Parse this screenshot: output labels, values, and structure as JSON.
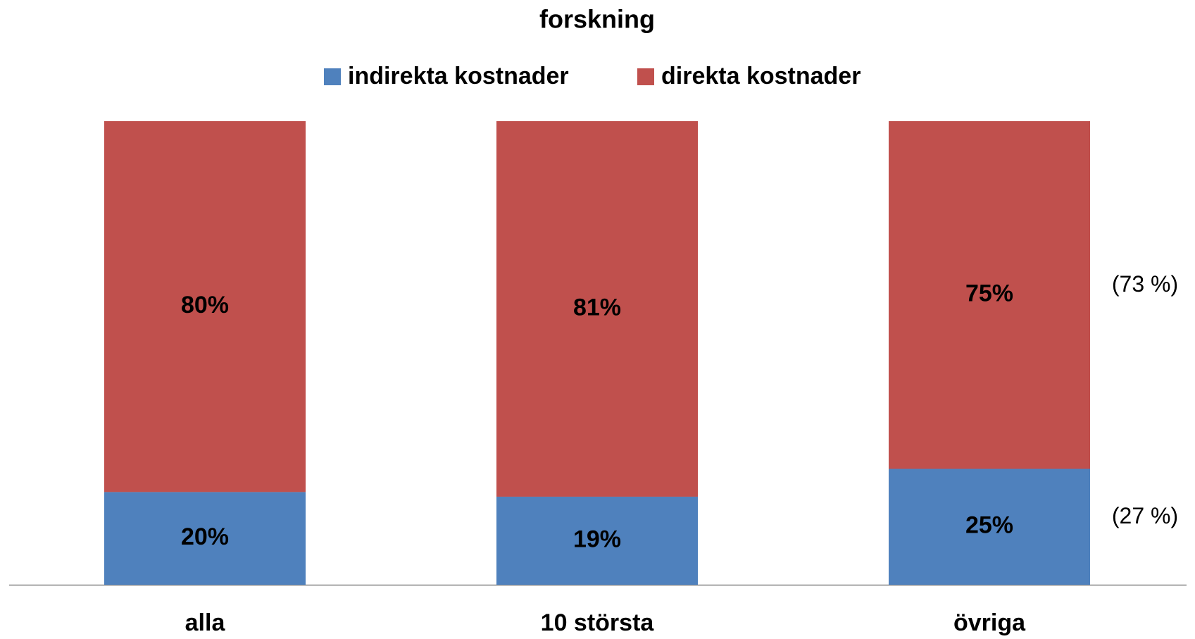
{
  "chart_data": {
    "type": "stacked_bar_100",
    "title": "forskning",
    "categories": [
      "alla",
      "10 största",
      "övriga"
    ],
    "series": [
      {
        "name": "indirekta kostnader",
        "color": "#4f81bd",
        "values": [
          20,
          19,
          25
        ],
        "value_labels": [
          "20%",
          "19%",
          "25%"
        ]
      },
      {
        "name": "direkta kostnader",
        "color": "#c0504d",
        "values": [
          80,
          81,
          75
        ],
        "value_labels": [
          "80%",
          "81%",
          "75%"
        ]
      }
    ],
    "annotations": [
      "(73 %)",
      "(27 %)"
    ],
    "legend": "top"
  }
}
